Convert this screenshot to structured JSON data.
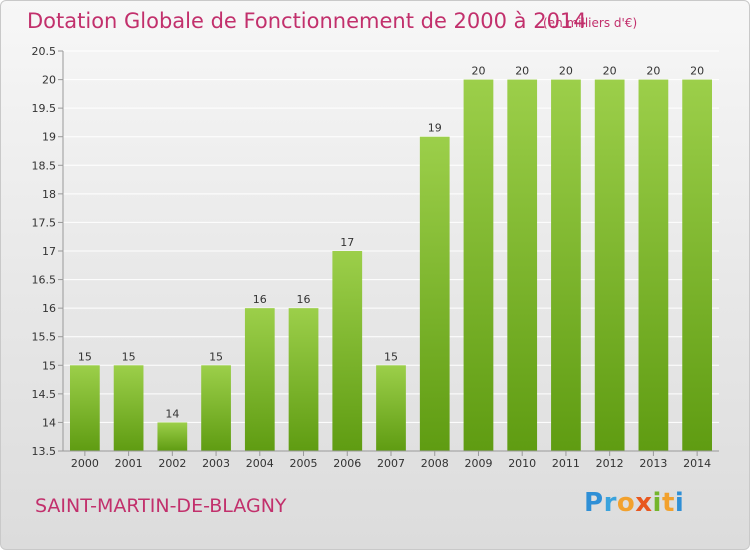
{
  "title": "Dotation Globale de Fonctionnement de 2000 à 2014",
  "subtitle": "(en milliers d'€)",
  "commune": "SAINT-MARTIN-DE-BLAGNY",
  "logo": {
    "p": "P",
    "r": "r",
    "o": "o",
    "x": "x",
    "i1": "i",
    "t": "t",
    "i2": "i"
  },
  "chart_data": {
    "type": "bar",
    "categories": [
      "2000",
      "2001",
      "2002",
      "2003",
      "2004",
      "2005",
      "2006",
      "2007",
      "2008",
      "2009",
      "2010",
      "2011",
      "2012",
      "2013",
      "2014"
    ],
    "values": [
      15,
      15,
      14,
      15,
      16,
      16,
      17,
      15,
      19,
      20,
      20,
      20,
      20,
      20,
      20
    ],
    "data_labels": [
      "15",
      "15",
      "14",
      "15",
      "16",
      "16",
      "17",
      "15",
      "19",
      "20",
      "20",
      "20",
      "20",
      "20",
      "20"
    ],
    "ylim": [
      13.5,
      20.5
    ],
    "yticks": [
      "13.5",
      "14",
      "14.5",
      "15",
      "15.5",
      "16",
      "16.5",
      "17",
      "17.5",
      "18",
      "18.5",
      "19",
      "19.5",
      "20",
      "20.5"
    ],
    "grid": true,
    "colors": {
      "bar_top": "#9ccf4a",
      "bar_bottom": "#5f9c12",
      "grid": "#ffffff",
      "axis": "#999999",
      "text": "#333333"
    }
  }
}
